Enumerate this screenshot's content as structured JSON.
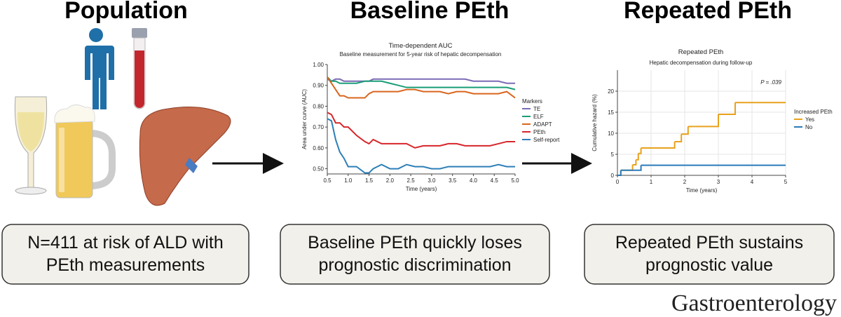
{
  "panels": [
    {
      "title": "Population",
      "caption": [
        "N=411 at risk of ALD with",
        "PEth measurements"
      ]
    },
    {
      "title": "Baseline PEth",
      "caption": [
        "Baseline PEth quickly loses",
        "prognostic discrimination"
      ]
    },
    {
      "title": "Repeated PEth",
      "caption": [
        "Repeated PEth sustains",
        "prognostic value"
      ]
    }
  ],
  "journal": "Gastroenterology",
  "chart_data": [
    {
      "type": "line",
      "title": "Time-dependent AUC",
      "subtitle": "Baseline measurement for 5-year risk of hepatic decompensation",
      "x_label": "Time (years)",
      "y_label": "Area under curve (AUC)",
      "legend_title": "Markers",
      "grid": false,
      "x": [
        0.5,
        0.6,
        0.7,
        0.8,
        0.9,
        1.0,
        1.2,
        1.4,
        1.5,
        1.6,
        1.8,
        2.0,
        2.2,
        2.4,
        2.6,
        2.8,
        3.0,
        3.2,
        3.4,
        3.6,
        3.8,
        4.0,
        4.2,
        4.4,
        4.6,
        4.8,
        5.0
      ],
      "series": [
        {
          "name": "TE",
          "color": "#7b6bb5",
          "values": [
            0.93,
            0.92,
            0.93,
            0.93,
            0.92,
            0.92,
            0.92,
            0.92,
            0.92,
            0.93,
            0.93,
            0.93,
            0.93,
            0.93,
            0.93,
            0.93,
            0.93,
            0.93,
            0.93,
            0.93,
            0.93,
            0.92,
            0.92,
            0.92,
            0.92,
            0.91,
            0.91
          ]
        },
        {
          "name": "ELF",
          "color": "#1a9e77",
          "values": [
            0.94,
            0.92,
            0.92,
            0.91,
            0.91,
            0.91,
            0.91,
            0.92,
            0.92,
            0.92,
            0.92,
            0.91,
            0.9,
            0.89,
            0.89,
            0.89,
            0.89,
            0.89,
            0.89,
            0.89,
            0.89,
            0.89,
            0.89,
            0.89,
            0.89,
            0.89,
            0.88
          ]
        },
        {
          "name": "ADAPT",
          "color": "#d9661f",
          "values": [
            0.94,
            0.91,
            0.88,
            0.85,
            0.85,
            0.84,
            0.84,
            0.84,
            0.86,
            0.87,
            0.87,
            0.87,
            0.87,
            0.88,
            0.88,
            0.87,
            0.87,
            0.87,
            0.86,
            0.87,
            0.87,
            0.86,
            0.86,
            0.86,
            0.86,
            0.87,
            0.84
          ]
        },
        {
          "name": "PEth",
          "color": "#d7262b",
          "values": [
            0.77,
            0.76,
            0.72,
            0.72,
            0.7,
            0.7,
            0.66,
            0.63,
            0.62,
            0.64,
            0.62,
            0.62,
            0.62,
            0.62,
            0.6,
            0.61,
            0.61,
            0.61,
            0.62,
            0.62,
            0.61,
            0.61,
            0.61,
            0.61,
            0.62,
            0.63,
            0.63
          ]
        },
        {
          "name": "Self-report",
          "color": "#2d7fb8",
          "values": [
            0.74,
            0.73,
            0.64,
            0.58,
            0.55,
            0.51,
            0.51,
            0.48,
            0.48,
            0.5,
            0.52,
            0.5,
            0.5,
            0.52,
            0.51,
            0.51,
            0.5,
            0.5,
            0.51,
            0.51,
            0.51,
            0.51,
            0.51,
            0.51,
            0.52,
            0.51,
            0.51
          ]
        }
      ],
      "xlim": [
        0.5,
        5.0
      ],
      "ylim": [
        0.475,
        1.0
      ],
      "xticks": [
        0.5,
        {
          "value": 1,
          "label": "1.0"
        },
        1.5,
        {
          "value": 2,
          "label": "2.0"
        },
        2.5,
        {
          "value": 3,
          "label": "3.0"
        },
        3.5,
        {
          "value": 4,
          "label": "4.0"
        },
        4.5,
        {
          "value": 5,
          "label": "5.0"
        }
      ],
      "yticks": [
        {
          "value": 0.5,
          "label": "0.50"
        },
        {
          "value": 0.6,
          "label": "0.60"
        },
        {
          "value": 0.7,
          "label": "0.70"
        },
        {
          "value": 0.8,
          "label": "0.80"
        },
        {
          "value": 0.9,
          "label": "0.90"
        },
        {
          "value": 1,
          "label": "1.00"
        }
      ]
    },
    {
      "type": "step",
      "title": "Repeated PEth",
      "subtitle": "Hepatic decompensation during follow-up",
      "x_label": "Time (years)",
      "y_label": "Cumulative hazard (%)",
      "legend_title": "Increased PEth",
      "annotation": "P = .039",
      "grid": true,
      "series": [
        {
          "name": "Yes",
          "color": "#e8a21c",
          "x": [
            0,
            0.1,
            0.45,
            0.55,
            0.62,
            0.7,
            1.7,
            1.9,
            2.1,
            2.3,
            3.0,
            3.5,
            5.0
          ],
          "values": [
            0,
            1.2,
            2.5,
            3.7,
            5.2,
            6.5,
            8.0,
            9.8,
            11.6,
            11.6,
            14.5,
            17.3,
            17.3
          ]
        },
        {
          "name": "No",
          "color": "#2b7bba",
          "x": [
            0,
            0.1,
            0.7,
            5.0
          ],
          "values": [
            0,
            1.2,
            2.4,
            2.4
          ]
        }
      ],
      "xlim": [
        0,
        5
      ],
      "ylim": [
        0,
        25
      ],
      "xticks": [
        0,
        1,
        2,
        3,
        4,
        5
      ],
      "yticks": [
        0,
        5,
        10,
        15,
        20
      ]
    }
  ]
}
